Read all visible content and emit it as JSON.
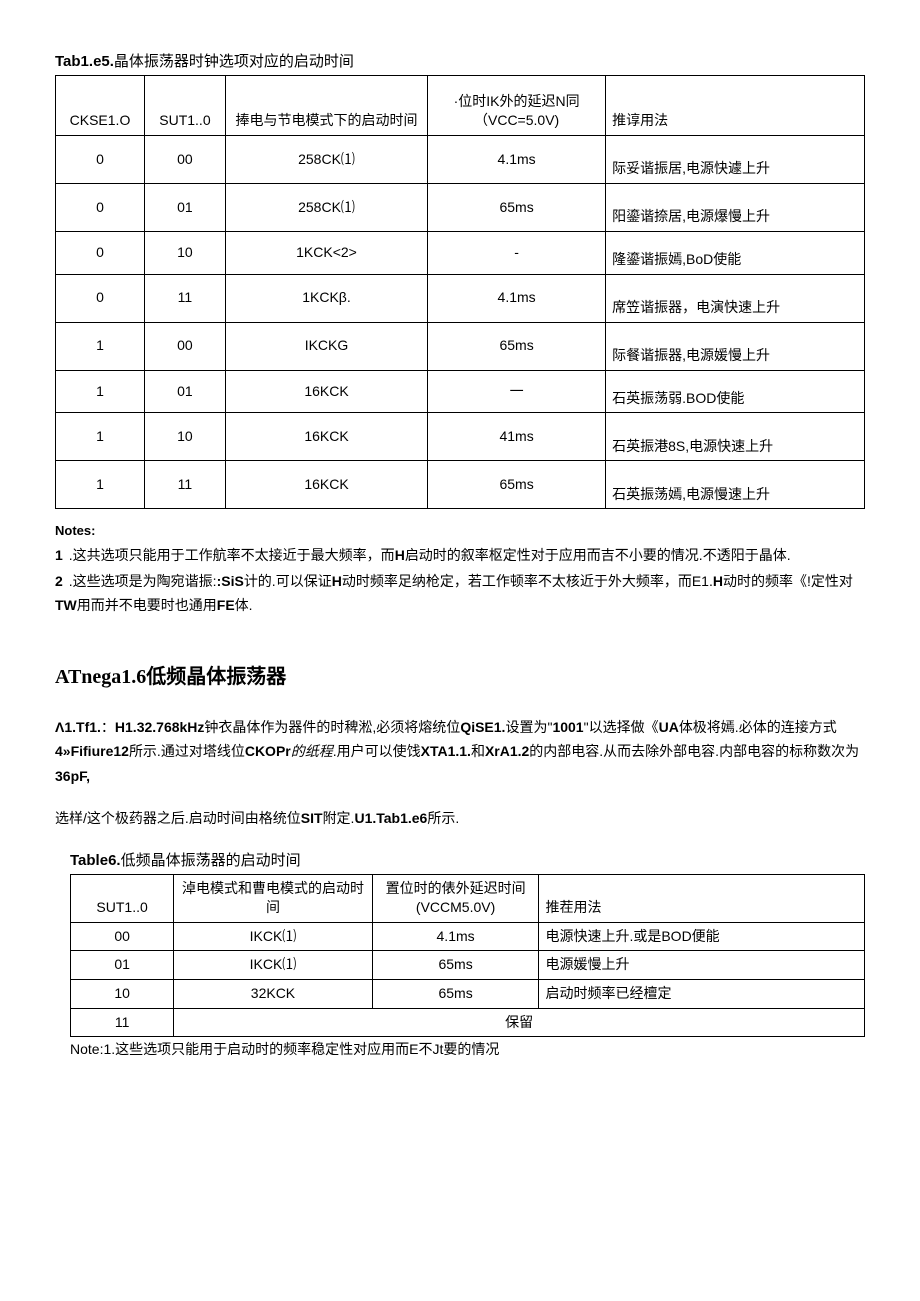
{
  "table5": {
    "title_bold": "Tab1.e5.",
    "title_rest": "晶体振荡器时钟选项对应的启动时间",
    "headers": [
      "CKSE1.O",
      "SUT1..0",
      "捧电与节电模式下的启动时间",
      "·位时IK外的延迟N同（VCC=5.0V)",
      "推谆用法"
    ],
    "rows": [
      {
        "ckse": "0",
        "sut": "00",
        "startup": "258CK⑴",
        "delay": "4.1ms",
        "rec": "际妥谐振居,电源快遽上升",
        "tall": true
      },
      {
        "ckse": "0",
        "sut": "01",
        "startup": "258CK⑴",
        "delay": "65ms",
        "rec": "阳鎏谐捺居,电源爆慢上升",
        "tall": true
      },
      {
        "ckse": "0",
        "sut": "10",
        "startup": "1KCK<2>",
        "delay": "-",
        "rec": "隆鎏谐振嫣,BoD使能",
        "tall": false
      },
      {
        "ckse": "0",
        "sut": "11",
        "startup": "1KCKβ.",
        "delay": "4.1ms",
        "rec": "席笠谐振器，电演快速上升",
        "tall": true
      },
      {
        "ckse": "1",
        "sut": "00",
        "startup": "IKCKG",
        "delay": "65ms",
        "rec": "际餐谐振器,电源媛慢上升",
        "tall": true
      },
      {
        "ckse": "1",
        "sut": "01",
        "startup": "16KCK",
        "delay": "一",
        "rec": "石英振荡弱.BOD使能",
        "tall": false
      },
      {
        "ckse": "1",
        "sut": "10",
        "startup": "16KCK",
        "delay": "41ms",
        "rec": "石英振港8S,电源快速上升",
        "tall": true
      },
      {
        "ckse": "1",
        "sut": "11",
        "startup": "16KCK",
        "delay": "65ms",
        "rec": "石英振荡嫣,电源慢速上升",
        "tall": true
      }
    ]
  },
  "notes": {
    "label": "Notes:",
    "items": [
      {
        "num": "1",
        "text": ".这共选项只能用于工作航率不太接近于最大频率，而H启动时的叙率枢定性对于应用而吉不小要的情况.不透阳于晶体."
      },
      {
        "num": "2",
        "text": ".这些选项是为陶宛谐振:SiS计的.可以保证H动时频率足纳枪定，若工作顿率不太核近于外大频率，而E1.H动时的频率《!定性对TW用而并不电要时也通用FE体."
      }
    ]
  },
  "section_heading": "ATnega1.6低频晶体振荡器",
  "para1_html": "Λ1.Tf1.：H1.32.768kHz钟衣晶体作为器件的时稗淞,必须将熔统位QiSE1.设置为\"1001\"以选择做《UA体极将嫣.必体的连接方式4»Fifiure12所示.通过对塔线位CKOPr的纸程.用户可以使饯XTA1.1.和XrA1.2的内部电容.从而去除外部电容.内部电容的标称数次为36pF,",
  "para2": "选样/这个极药器之后.启动时间由格统位SIT附定.U1.Tab1.e6所示.",
  "table6": {
    "title_bold": "Table6.",
    "title_rest": "低频晶体振荡器的启动时间",
    "headers": [
      "SUT1..0",
      "淖电模式和曹电模式的启动时间",
      "置位时的俵外延迟时间(VCCM5.0V)",
      "推茬用法"
    ],
    "rows": [
      {
        "sut": "00",
        "startup": "IKCK⑴",
        "delay": "4.1ms",
        "rec": "电源快速上升.或是BOD便能"
      },
      {
        "sut": "01",
        "startup": "IKCK⑴",
        "delay": "65ms",
        "rec": "电源媛慢上升"
      },
      {
        "sut": "10",
        "startup": "32KCK",
        "delay": "65ms",
        "rec": "启动时频率已经檀定"
      }
    ],
    "reserved_sut": "11",
    "reserved_text": "保留"
  },
  "footnote": "Note:1.这些选项只能用于启动时的频率稳定性对应用而E不Jt要的情况"
}
